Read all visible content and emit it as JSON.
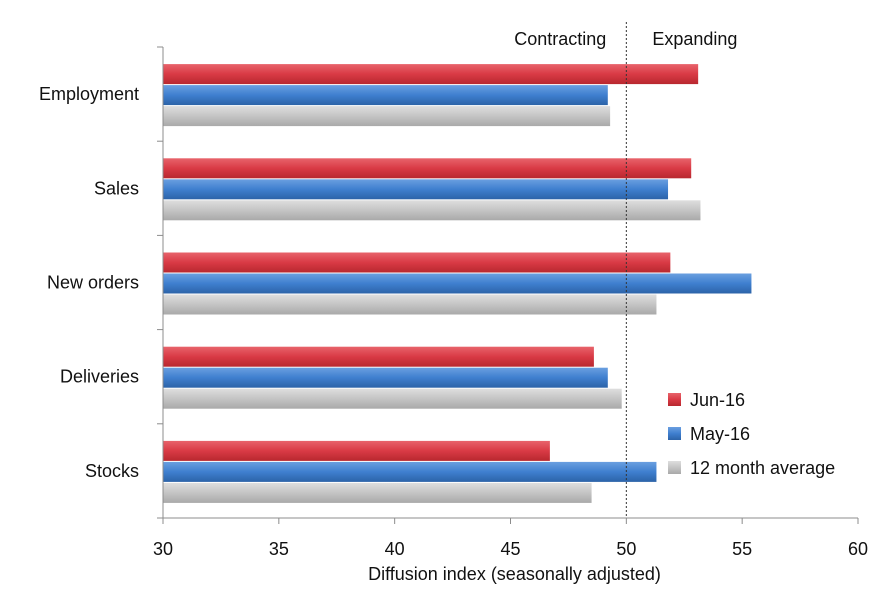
{
  "chart_data": {
    "type": "bar",
    "orientation": "horizontal",
    "title": "",
    "xlabel": "Diffusion index (seasonally adjusted)",
    "ylabel": "",
    "xlim": [
      30,
      60
    ],
    "x_ticks": [
      30,
      35,
      40,
      45,
      50,
      55,
      60
    ],
    "grid": false,
    "categories": [
      "Employment",
      "Sales",
      "New orders",
      "Deliveries",
      "Stocks"
    ],
    "series": [
      {
        "name": "Jun-16",
        "color": "#d93a45",
        "values": [
          53.1,
          52.8,
          51.9,
          48.6,
          46.7
        ]
      },
      {
        "name": "May-16",
        "color": "#3f7fcf",
        "values": [
          49.2,
          51.8,
          55.4,
          49.2,
          51.3
        ]
      },
      {
        "name": "12 month average",
        "color": "#c4c4c4",
        "values": [
          49.3,
          53.2,
          51.3,
          49.8,
          48.5
        ]
      }
    ],
    "reference_line": {
      "value": 50,
      "left_label": "Contracting",
      "right_label": "Expanding"
    },
    "legend_position": "bottom-right"
  }
}
